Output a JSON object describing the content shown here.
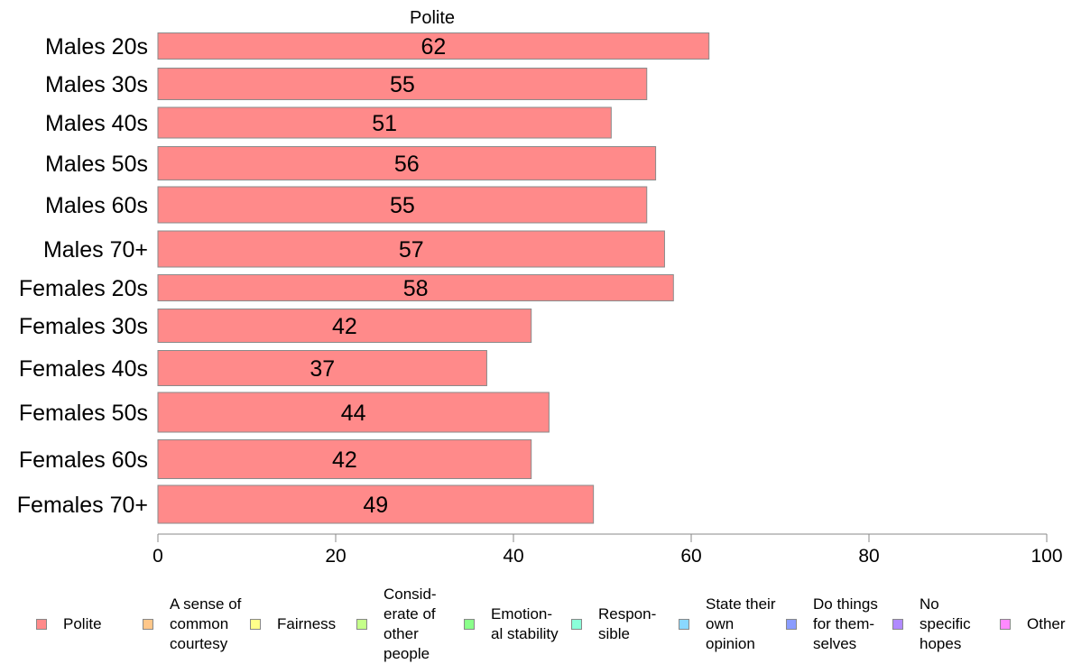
{
  "chart_data": {
    "type": "bar",
    "orientation": "horizontal",
    "title": "Polite",
    "categories": [
      "Males 20s",
      "Males 30s",
      "Males 40s",
      "Males 50s",
      "Males 60s",
      "Males 70+",
      "Females 20s",
      "Females 30s",
      "Females 40s",
      "Females 50s",
      "Females 60s",
      "Females 70+"
    ],
    "series": [
      {
        "name": "Polite",
        "values": [
          62,
          55,
          51,
          56,
          55,
          57,
          58,
          42,
          37,
          44,
          42,
          49
        ],
        "color": "#ff8a8a"
      }
    ],
    "data_labels": [
      "62",
      "55",
      "51",
      "56",
      "55",
      "57",
      "58",
      "42",
      "37",
      "44",
      "42",
      "49"
    ],
    "xlim": [
      0,
      100
    ],
    "xticks": [
      "0",
      "20",
      "40",
      "60",
      "80",
      "100"
    ],
    "grid": false,
    "legend_position": "bottom",
    "legend": [
      {
        "label": "Polite",
        "color": "#ff8a8a"
      },
      {
        "label": "A sense of common courtesy",
        "color": "#ffc78a"
      },
      {
        "label": "Fairness",
        "color": "#ffff8a"
      },
      {
        "label": "Consid-erate of other people",
        "color": "#c5ff8a"
      },
      {
        "label": "Emotion-al stability",
        "color": "#8aff8a"
      },
      {
        "label": "Respon-sible",
        "color": "#8affd9"
      },
      {
        "label": "State their own opinion",
        "color": "#8ad8ff"
      },
      {
        "label": "Do things for them-selves",
        "color": "#8a9cff"
      },
      {
        "label": "No specific hopes",
        "color": "#b08aff"
      },
      {
        "label": "Other",
        "color": "#ff8aff"
      }
    ]
  }
}
